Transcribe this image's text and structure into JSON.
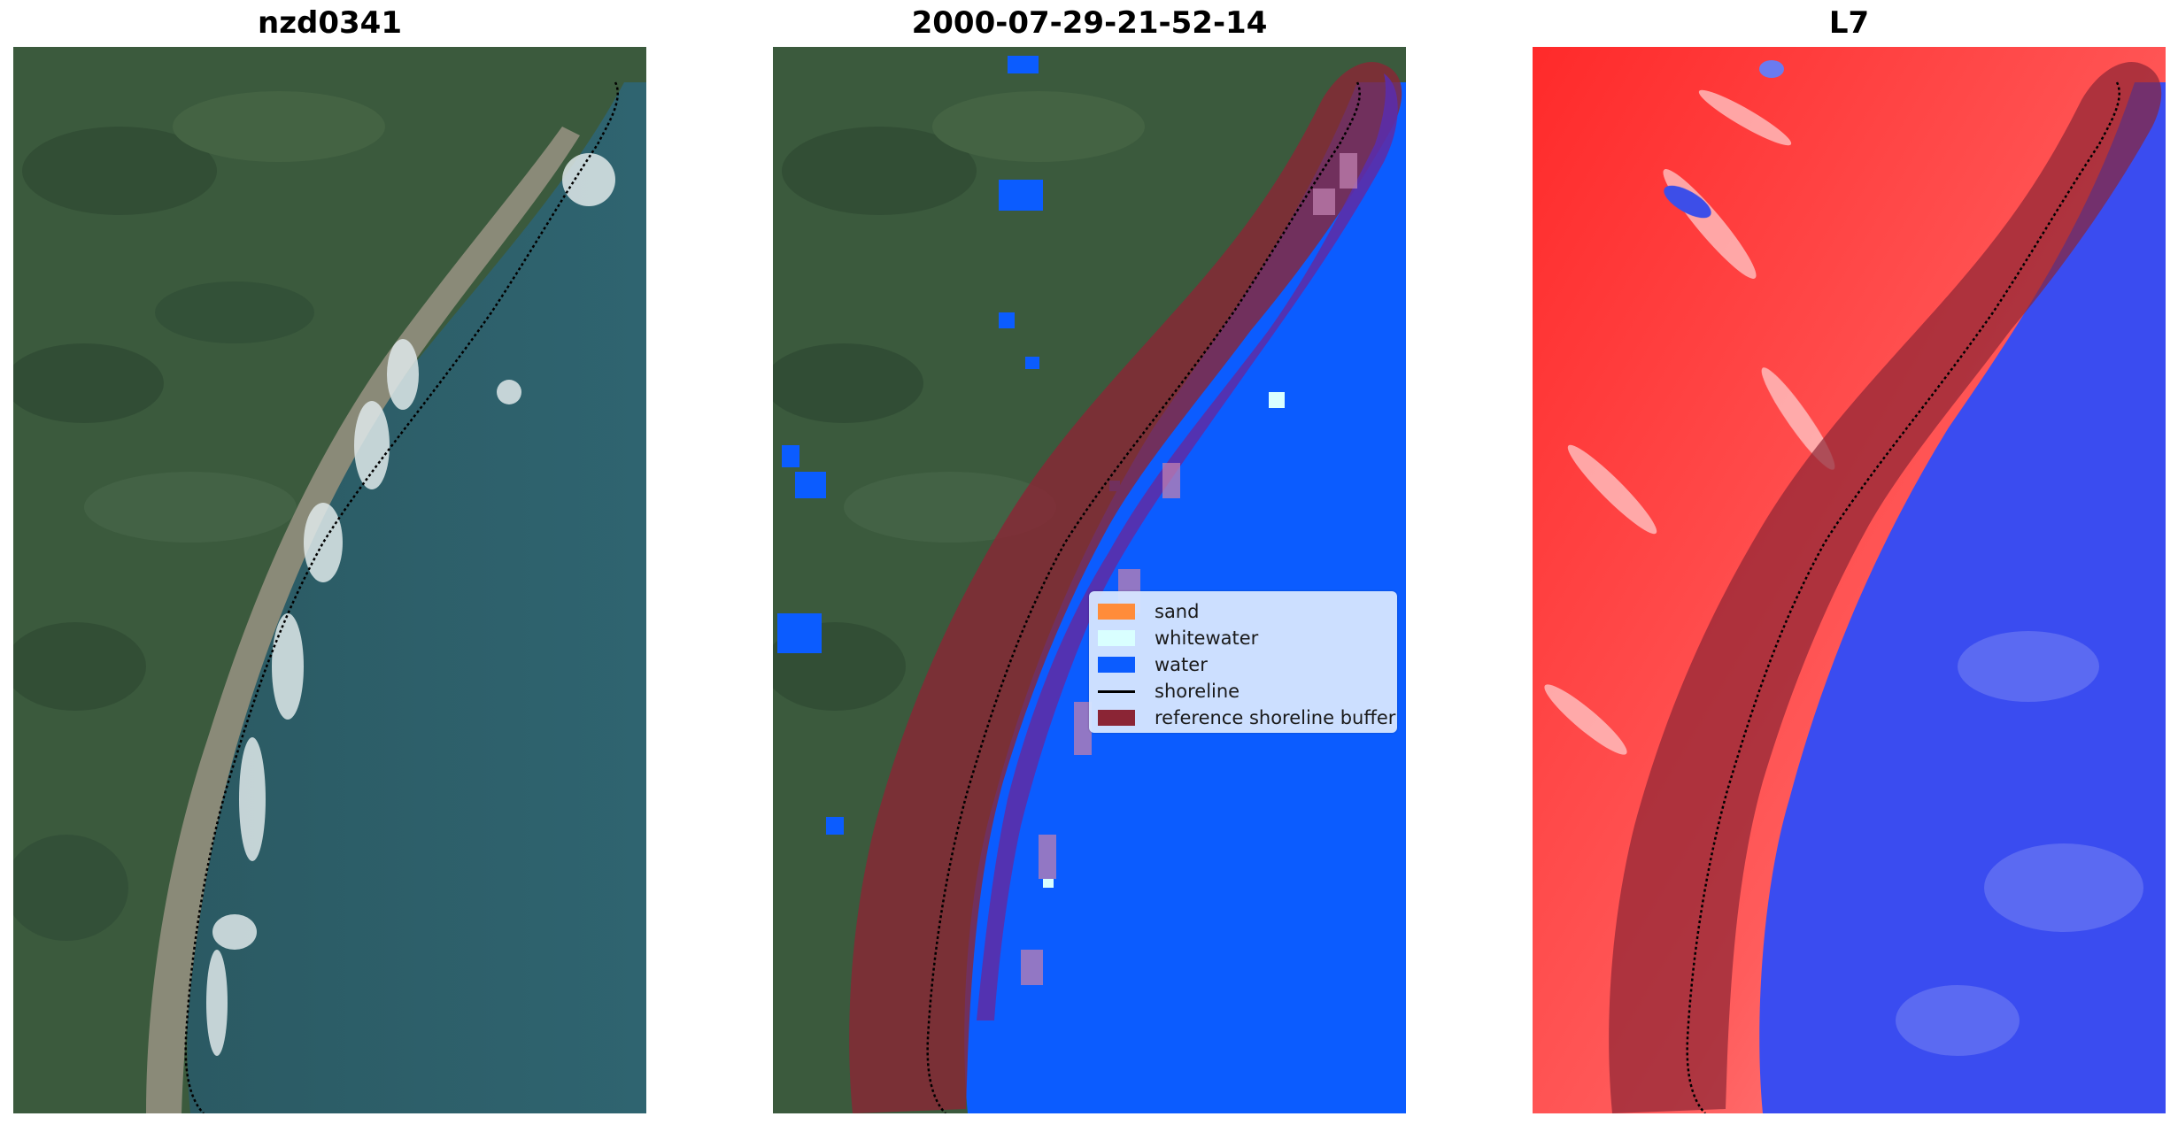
{
  "panels": [
    {
      "title": "nzd0341"
    },
    {
      "title": "2000-07-29-21-52-14"
    },
    {
      "title": "L7"
    }
  ],
  "legend": {
    "items": [
      {
        "label": "sand",
        "color": "#ff8c3a"
      },
      {
        "label": "whitewater",
        "color": "#d9ffff"
      },
      {
        "label": "water",
        "color": "#0b5cff"
      },
      {
        "label": "shoreline",
        "color": "#000000"
      },
      {
        "label": "reference shoreline buffer",
        "color": "#8b2535"
      }
    ]
  }
}
